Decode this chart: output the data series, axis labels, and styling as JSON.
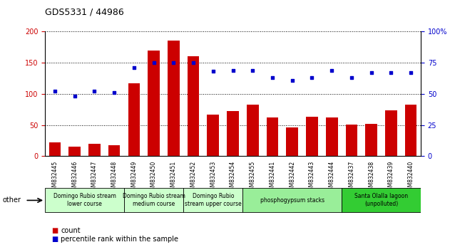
{
  "title": "GDS5331 / 44986",
  "samples": [
    "GSM832445",
    "GSM832446",
    "GSM832447",
    "GSM832448",
    "GSM832449",
    "GSM832450",
    "GSM832451",
    "GSM832452",
    "GSM832453",
    "GSM832454",
    "GSM832455",
    "GSM832441",
    "GSM832442",
    "GSM832443",
    "GSM832444",
    "GSM832437",
    "GSM832438",
    "GSM832439",
    "GSM832440"
  ],
  "counts": [
    22,
    15,
    20,
    18,
    117,
    170,
    186,
    160,
    67,
    73,
    83,
    62,
    46,
    63,
    62,
    51,
    52,
    74,
    83
  ],
  "percentiles": [
    52,
    48,
    52,
    51,
    71,
    75,
    75,
    75,
    68,
    69,
    69,
    63,
    61,
    63,
    69,
    63,
    67,
    67,
    67
  ],
  "groups": [
    {
      "label": "Domingo Rubio stream\nlower course",
      "start": 0,
      "end": 4,
      "color": "#ccffcc"
    },
    {
      "label": "Domingo Rubio stream\nmedium course",
      "start": 4,
      "end": 7,
      "color": "#ccffcc"
    },
    {
      "label": "Domingo Rubio\nstream upper course",
      "start": 7,
      "end": 10,
      "color": "#ccffcc"
    },
    {
      "label": "phosphogypsum stacks",
      "start": 10,
      "end": 15,
      "color": "#99ee99"
    },
    {
      "label": "Santa Olalla lagoon\n(unpolluted)",
      "start": 15,
      "end": 19,
      "color": "#33cc33"
    }
  ],
  "bar_color": "#cc0000",
  "dot_color": "#0000cc",
  "ylim_left": [
    0,
    200
  ],
  "ylim_right": [
    0,
    100
  ],
  "yticks_left": [
    0,
    50,
    100,
    150,
    200
  ],
  "yticks_right": [
    0,
    25,
    50,
    75,
    100
  ],
  "bg_color": "#ffffff",
  "tick_color_left": "#cc0000",
  "tick_color_right": "#0000cc"
}
